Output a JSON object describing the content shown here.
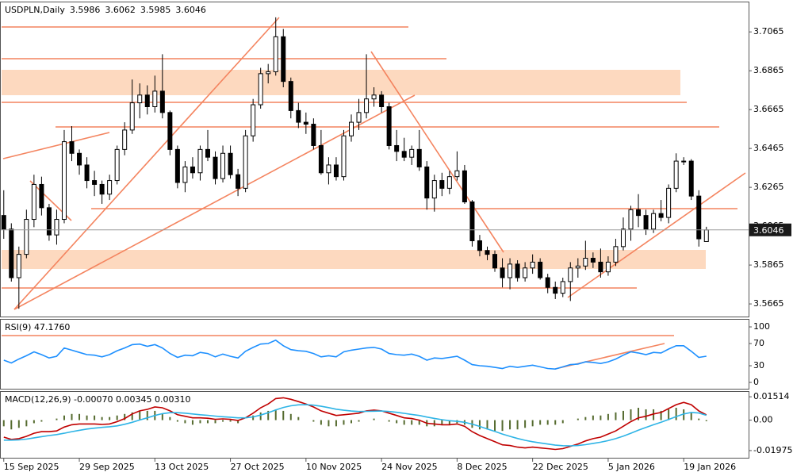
{
  "chart_data": [
    {
      "type": "candlestick",
      "symbol": "USDPLN,Daily",
      "categories": [
        "15 Sep 2025",
        null,
        null,
        null,
        null,
        null,
        null,
        null,
        null,
        null,
        "29 Sep 2025",
        null,
        null,
        null,
        null,
        null,
        null,
        null,
        null,
        null,
        "13 Oct 2025",
        null,
        null,
        null,
        null,
        null,
        null,
        null,
        null,
        null,
        "27 Oct 2025",
        null,
        null,
        null,
        null,
        null,
        null,
        null,
        null,
        null,
        "10 Nov 2025",
        null,
        null,
        null,
        null,
        null,
        null,
        null,
        null,
        null,
        "24 Nov 2025",
        null,
        null,
        null,
        null,
        null,
        null,
        null,
        null,
        null,
        "8 Dec 2025",
        null,
        null,
        null,
        null,
        null,
        null,
        null,
        null,
        null,
        "22 Dec 2025",
        null,
        null,
        null,
        null,
        null,
        null,
        null,
        null,
        null,
        "5 Jan 2026",
        null,
        null,
        null,
        null,
        null,
        null,
        null,
        null,
        null,
        "19 Jan 2026",
        null,
        null,
        null
      ],
      "ohlc": [
        [
          3.612,
          3.625,
          3.6,
          3.605
        ],
        [
          3.605,
          3.608,
          3.578,
          3.58
        ],
        [
          3.58,
          3.596,
          3.564,
          3.592
        ],
        [
          3.592,
          3.615,
          3.59,
          3.61
        ],
        [
          3.61,
          3.633,
          3.606,
          3.628
        ],
        [
          3.628,
          3.632,
          3.612,
          3.616
        ],
        [
          3.616,
          3.618,
          3.599,
          3.602
        ],
        [
          3.602,
          3.615,
          3.597,
          3.61
        ],
        [
          3.61,
          3.656,
          3.608,
          3.65
        ],
        [
          3.65,
          3.658,
          3.64,
          3.644
        ],
        [
          3.644,
          3.646,
          3.633,
          3.638
        ],
        [
          3.638,
          3.642,
          3.626,
          3.63
        ],
        [
          3.63,
          3.635,
          3.622,
          3.628
        ],
        [
          3.628,
          3.63,
          3.618,
          3.623
        ],
        [
          3.623,
          3.633,
          3.62,
          3.63
        ],
        [
          3.63,
          3.648,
          3.628,
          3.646
        ],
        [
          3.646,
          3.66,
          3.643,
          3.656
        ],
        [
          3.656,
          3.682,
          3.654,
          3.67
        ],
        [
          3.67,
          3.68,
          3.662,
          3.674
        ],
        [
          3.674,
          3.679,
          3.664,
          3.668
        ],
        [
          3.668,
          3.684,
          3.665,
          3.676
        ],
        [
          3.676,
          3.695,
          3.662,
          3.665
        ],
        [
          3.665,
          3.666,
          3.643,
          3.646
        ],
        [
          3.646,
          3.648,
          3.626,
          3.629
        ],
        [
          3.629,
          3.64,
          3.624,
          3.637
        ],
        [
          3.637,
          3.642,
          3.631,
          3.634
        ],
        [
          3.634,
          3.648,
          3.63,
          3.646
        ],
        [
          3.646,
          3.656,
          3.64,
          3.642
        ],
        [
          3.642,
          3.645,
          3.628,
          3.631
        ],
        [
          3.631,
          3.648,
          3.629,
          3.644
        ],
        [
          3.644,
          3.648,
          3.631,
          3.633
        ],
        [
          3.633,
          3.636,
          3.622,
          3.626
        ],
        [
          3.626,
          3.656,
          3.624,
          3.653
        ],
        [
          3.653,
          3.672,
          3.65,
          3.669
        ],
        [
          3.669,
          3.688,
          3.667,
          3.685
        ],
        [
          3.685,
          3.69,
          3.68,
          3.686
        ],
        [
          3.686,
          3.714,
          3.684,
          3.704
        ],
        [
          3.704,
          3.708,
          3.678,
          3.681
        ],
        [
          3.681,
          3.683,
          3.662,
          3.666
        ],
        [
          3.666,
          3.67,
          3.657,
          3.66
        ],
        [
          3.66,
          3.665,
          3.654,
          3.659
        ],
        [
          3.659,
          3.662,
          3.646,
          3.648
        ],
        [
          3.648,
          3.656,
          3.633,
          3.634
        ],
        [
          3.634,
          3.642,
          3.628,
          3.638
        ],
        [
          3.638,
          3.642,
          3.63,
          3.632
        ],
        [
          3.632,
          3.656,
          3.63,
          3.653
        ],
        [
          3.653,
          3.664,
          3.65,
          3.66
        ],
        [
          3.66,
          3.672,
          3.656,
          3.665
        ],
        [
          3.665,
          3.695,
          3.662,
          3.672
        ],
        [
          3.672,
          3.678,
          3.668,
          3.674
        ],
        [
          3.674,
          3.676,
          3.665,
          3.668
        ],
        [
          3.668,
          3.67,
          3.646,
          3.648
        ],
        [
          3.648,
          3.656,
          3.64,
          3.645
        ],
        [
          3.645,
          3.652,
          3.64,
          3.642
        ],
        [
          3.642,
          3.648,
          3.638,
          3.646
        ],
        [
          3.646,
          3.656,
          3.635,
          3.637
        ],
        [
          3.637,
          3.64,
          3.615,
          3.621
        ],
        [
          3.621,
          3.633,
          3.614,
          3.63
        ],
        [
          3.63,
          3.634,
          3.622,
          3.626
        ],
        [
          3.626,
          3.635,
          3.623,
          3.632
        ],
        [
          3.632,
          3.645,
          3.63,
          3.635
        ],
        [
          3.635,
          3.638,
          3.618,
          3.619
        ],
        [
          3.619,
          3.62,
          3.596,
          3.599
        ],
        [
          3.599,
          3.602,
          3.591,
          3.594
        ],
        [
          3.594,
          3.596,
          3.589,
          3.592
        ],
        [
          3.592,
          3.594,
          3.583,
          3.585
        ],
        [
          3.585,
          3.59,
          3.575,
          3.58
        ],
        [
          3.58,
          3.59,
          3.574,
          3.587
        ],
        [
          3.587,
          3.589,
          3.578,
          3.58
        ],
        [
          3.58,
          3.588,
          3.578,
          3.585
        ],
        [
          3.585,
          3.592,
          3.582,
          3.588
        ],
        [
          3.588,
          3.59,
          3.579,
          3.58
        ],
        [
          3.58,
          3.582,
          3.572,
          3.575
        ],
        [
          3.575,
          3.578,
          3.569,
          3.572
        ],
        [
          3.572,
          3.58,
          3.57,
          3.578
        ],
        [
          3.578,
          3.588,
          3.568,
          3.585
        ],
        [
          3.585,
          3.59,
          3.58,
          3.586
        ],
        [
          3.586,
          3.599,
          3.584,
          3.59
        ],
        [
          3.59,
          3.593,
          3.585,
          3.588
        ],
        [
          3.588,
          3.595,
          3.58,
          3.583
        ],
        [
          3.583,
          3.591,
          3.581,
          3.588
        ],
        [
          3.588,
          3.6,
          3.586,
          3.596
        ],
        [
          3.596,
          3.611,
          3.594,
          3.605
        ],
        [
          3.605,
          3.617,
          3.599,
          3.615
        ],
        [
          3.615,
          3.623,
          3.606,
          3.612
        ],
        [
          3.612,
          3.615,
          3.602,
          3.605
        ],
        [
          3.605,
          3.615,
          3.603,
          3.613
        ],
        [
          3.613,
          3.62,
          3.609,
          3.611
        ],
        [
          3.611,
          3.628,
          3.608,
          3.626
        ],
        [
          3.626,
          3.644,
          3.624,
          3.64
        ],
        [
          3.64,
          3.642,
          3.638,
          3.64
        ],
        [
          3.64,
          3.641,
          3.62,
          3.622
        ],
        [
          3.622,
          3.625,
          3.596,
          3.6
        ],
        [
          3.5986,
          3.6062,
          3.5985,
          3.6046
        ]
      ],
      "up_color": "#ffffff",
      "down_color": "#000000",
      "ylim": [
        3.56,
        3.7221
      ],
      "yticks": [
        3.7065,
        3.6865,
        3.6665,
        3.6465,
        3.6265,
        3.6065,
        3.5865,
        3.5665
      ],
      "grid": false
    },
    {
      "type": "line",
      "indicator_label": "RSI(9) 47.1760",
      "color": "#1e90ff",
      "values": [
        40,
        35,
        42,
        48,
        55,
        50,
        44,
        47,
        62,
        58,
        54,
        50,
        49,
        46,
        50,
        57,
        62,
        68,
        69,
        65,
        68,
        62,
        52,
        45,
        49,
        48,
        54,
        52,
        46,
        51,
        47,
        44,
        56,
        63,
        69,
        70,
        76,
        66,
        59,
        57,
        56,
        52,
        46,
        48,
        46,
        55,
        58,
        60,
        62,
        63,
        60,
        52,
        50,
        49,
        51,
        47,
        40,
        44,
        43,
        45,
        47,
        40,
        32,
        30,
        29,
        27,
        25,
        29,
        27,
        29,
        31,
        28,
        25,
        24,
        28,
        32,
        33,
        37,
        36,
        34,
        37,
        42,
        49,
        55,
        53,
        50,
        54,
        53,
        60,
        66,
        66,
        56,
        45,
        47.176
      ],
      "ylim": [
        -11.4,
        112.9
      ],
      "yticks": [
        100,
        70,
        30,
        0
      ],
      "grid": false
    },
    {
      "type": "macd",
      "indicator_label": "MACD(12,26,9) -0.00070 0.00345 0.00310",
      "series": [
        {
          "type": "bar",
          "color": "#556b2f",
          "values": [
            -0.004,
            -0.006,
            -0.005,
            -0.004,
            -0.002,
            -0.001,
            0.0,
            0.001,
            0.003,
            0.004,
            0.004,
            0.003,
            0.003,
            0.002,
            0.002,
            0.003,
            0.004,
            0.005,
            0.006,
            0.006,
            0.006,
            0.004,
            0.002,
            -0.001,
            -0.002,
            -0.003,
            -0.002,
            -0.002,
            -0.002,
            -0.001,
            -0.001,
            -0.002,
            0.0,
            0.003,
            0.005,
            0.006,
            0.007,
            0.006,
            0.004,
            0.002,
            0.0,
            -0.001,
            -0.003,
            -0.004,
            -0.004,
            -0.003,
            -0.002,
            -0.001,
            0.0,
            0.001,
            0.0,
            -0.001,
            -0.002,
            -0.003,
            -0.003,
            -0.003,
            -0.004,
            -0.004,
            -0.003,
            -0.003,
            -0.002,
            -0.003,
            -0.005,
            -0.006,
            -0.006,
            -0.007,
            -0.007,
            -0.006,
            -0.006,
            -0.005,
            -0.004,
            -0.003,
            -0.003,
            -0.003,
            -0.002,
            0.0,
            0.001,
            0.002,
            0.003,
            0.003,
            0.004,
            0.005,
            0.006,
            0.007,
            0.008,
            0.007,
            0.007,
            0.006,
            0.007,
            0.008,
            0.007,
            0.005,
            0.001,
            -0.0007
          ]
        },
        {
          "type": "line",
          "color": "#c00000",
          "values": [
            -0.011,
            -0.0125,
            -0.012,
            -0.0105,
            -0.0085,
            -0.0075,
            -0.0075,
            -0.007,
            -0.0045,
            -0.003,
            -0.0025,
            -0.0025,
            -0.0025,
            -0.0028,
            -0.0025,
            -0.001,
            0.001,
            0.004,
            0.006,
            0.007,
            0.0085,
            0.008,
            0.006,
            0.0035,
            0.0025,
            0.0015,
            0.0015,
            0.0012,
            0.0005,
            0.0008,
            0.0005,
            -0.0002,
            0.0015,
            0.0045,
            0.008,
            0.0105,
            0.014,
            0.0145,
            0.0135,
            0.012,
            0.0105,
            0.0085,
            0.006,
            0.0045,
            0.003,
            0.0035,
            0.004,
            0.0045,
            0.006,
            0.0065,
            0.006,
            0.0045,
            0.003,
            0.0015,
            0.001,
            0.0,
            -0.002,
            -0.0025,
            -0.003,
            -0.003,
            -0.0025,
            -0.004,
            -0.0075,
            -0.01,
            -0.012,
            -0.014,
            -0.016,
            -0.0165,
            -0.0175,
            -0.018,
            -0.0175,
            -0.018,
            -0.0185,
            -0.019,
            -0.0185,
            -0.017,
            -0.0155,
            -0.0135,
            -0.012,
            -0.011,
            -0.009,
            -0.007,
            -0.004,
            -0.001,
            0.0015,
            0.0025,
            0.004,
            0.005,
            0.0075,
            0.01,
            0.0115,
            0.01,
            0.006,
            0.00345
          ]
        },
        {
          "type": "line",
          "color": "#2eb4e6",
          "values": [
            -0.013,
            -0.013,
            -0.0128,
            -0.0123,
            -0.0115,
            -0.0107,
            -0.01,
            -0.0094,
            -0.0085,
            -0.0075,
            -0.0066,
            -0.0058,
            -0.0052,
            -0.0047,
            -0.0043,
            -0.0037,
            -0.0027,
            -0.0014,
            0.0001,
            0.0015,
            0.003,
            0.0042,
            0.0048,
            0.0048,
            0.0045,
            0.004,
            0.0035,
            0.0031,
            0.0026,
            0.0022,
            0.0019,
            0.0015,
            0.0015,
            0.0021,
            0.0033,
            0.0048,
            0.0066,
            0.0082,
            0.0093,
            0.0099,
            0.01,
            0.0097,
            0.009,
            0.0081,
            0.0071,
            0.0064,
            0.0059,
            0.0056,
            0.0057,
            0.0058,
            0.0059,
            0.0056,
            0.0051,
            0.0044,
            0.0037,
            0.003,
            0.002,
            0.0011,
            0.0003,
            -0.0004,
            -0.0008,
            -0.0014,
            -0.0026,
            -0.0041,
            -0.0057,
            -0.0073,
            -0.009,
            -0.0105,
            -0.0119,
            -0.0131,
            -0.014,
            -0.0148,
            -0.0155,
            -0.0162,
            -0.0166,
            -0.0167,
            -0.0165,
            -0.0159,
            -0.0151,
            -0.0143,
            -0.0133,
            -0.012,
            -0.0104,
            -0.0085,
            -0.0065,
            -0.0047,
            -0.003,
            -0.0014,
            0.0004,
            0.0023,
            0.004,
            0.005,
            0.0046,
            0.0031
          ]
        }
      ],
      "ylim": [
        -0.0244,
        0.0183
      ],
      "yticks": [
        0.01514,
        {
          "value": 0,
          "label": "0.00"
        },
        -0.01975
      ],
      "grid": false
    }
  ]
}
